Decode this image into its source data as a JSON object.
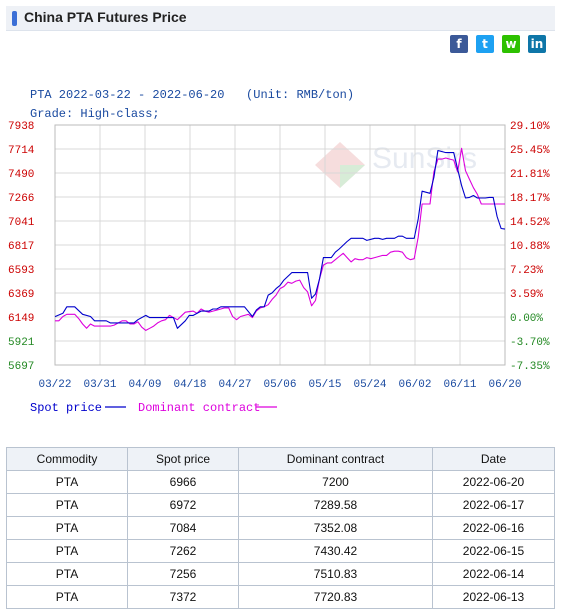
{
  "page": {
    "title": "China PTA Futures Price"
  },
  "share": {
    "icons": [
      "facebook-icon",
      "twitter-icon",
      "wechat-icon",
      "linkedin-icon"
    ]
  },
  "chart_data": {
    "type": "line",
    "title": "PTA 2022-03-22 - 2022-06-20   (Unit: RMB/ton)",
    "subtitle": "Grade: High-class;",
    "watermark": "SunSirs",
    "x_tick_labels": [
      "03/22",
      "03/31",
      "04/09",
      "04/18",
      "04/27",
      "05/06",
      "05/15",
      "05/24",
      "06/02",
      "06/11",
      "06/20"
    ],
    "y_left_ticks": [
      "7938",
      "7714",
      "7490",
      "7266",
      "7041",
      "6817",
      "6593",
      "6369",
      "6149",
      "5921",
      "5697"
    ],
    "y_right_ticks": [
      "29.10%",
      "25.45%",
      "21.81%",
      "18.17%",
      "14.52%",
      "10.88%",
      "7.23%",
      "3.59%",
      "0.00%",
      "-3.70%",
      "-7.35%"
    ],
    "ylim": [
      5697,
      7938
    ],
    "x_count": 91,
    "grid": true,
    "legend_position": "bottom-left",
    "colors": {
      "spot": "#0000cc",
      "dominant": "#dd00dd",
      "left_axis": "#cc0000",
      "right_axis": "#cc0000",
      "left_axis_low": "#228822",
      "right_axis_low": "#228822"
    },
    "series": [
      {
        "name": "Spot price",
        "key": "spot",
        "values": [
          [
            0,
            6149
          ],
          [
            2,
            6180
          ],
          [
            3,
            6240
          ],
          [
            5,
            6240
          ],
          [
            7,
            6170
          ],
          [
            9,
            6150
          ],
          [
            10,
            6110
          ],
          [
            12,
            6110
          ],
          [
            13,
            6110
          ],
          [
            14,
            6090
          ],
          [
            16,
            6090
          ],
          [
            17,
            6090
          ],
          [
            18,
            6090
          ],
          [
            19,
            6090
          ],
          [
            20,
            6090
          ],
          [
            21,
            6120
          ],
          [
            23,
            6160
          ],
          [
            24,
            6140
          ],
          [
            25,
            6140
          ],
          [
            26,
            6140
          ],
          [
            27,
            6140
          ],
          [
            28,
            6140
          ],
          [
            30,
            6140
          ],
          [
            31,
            6040
          ],
          [
            33,
            6110
          ],
          [
            34,
            6160
          ],
          [
            35,
            6160
          ],
          [
            37,
            6200
          ],
          [
            38,
            6200
          ],
          [
            39,
            6200
          ],
          [
            40,
            6220
          ],
          [
            41,
            6220
          ],
          [
            42,
            6240
          ],
          [
            43,
            6240
          ],
          [
            44,
            6240
          ],
          [
            46,
            6240
          ],
          [
            47,
            6240
          ],
          [
            48,
            6240
          ],
          [
            50,
            6150
          ],
          [
            51,
            6210
          ],
          [
            52,
            6240
          ],
          [
            53,
            6240
          ],
          [
            54,
            6350
          ],
          [
            55,
            6370
          ],
          [
            56,
            6410
          ],
          [
            57,
            6440
          ],
          [
            58,
            6490
          ],
          [
            60,
            6560
          ],
          [
            61,
            6560
          ],
          [
            62,
            6560
          ],
          [
            63,
            6560
          ],
          [
            64,
            6560
          ],
          [
            65,
            6320
          ],
          [
            66,
            6360
          ],
          [
            67,
            6500
          ],
          [
            68,
            6700
          ],
          [
            70,
            6700
          ],
          [
            71,
            6750
          ],
          [
            72,
            6780
          ],
          [
            74,
            6850
          ],
          [
            75,
            6880
          ],
          [
            76,
            6880
          ],
          [
            77,
            6880
          ],
          [
            78,
            6880
          ],
          [
            79,
            6860
          ],
          [
            81,
            6880
          ],
          [
            82,
            6880
          ],
          [
            83,
            6870
          ],
          [
            84,
            6880
          ],
          [
            85,
            6880
          ],
          [
            86,
            6880
          ],
          [
            87,
            6900
          ],
          [
            88,
            6900
          ],
          [
            89,
            6880
          ],
          [
            90,
            6880
          ],
          [
            91,
            6880
          ],
          [
            92,
            7060
          ],
          [
            93,
            7320
          ],
          [
            95,
            7300
          ],
          [
            96,
            7450
          ],
          [
            97,
            7700
          ],
          [
            99,
            7680
          ],
          [
            100,
            7680
          ],
          [
            101,
            7680
          ],
          [
            103,
            7372
          ],
          [
            104,
            7256
          ],
          [
            105,
            7262
          ],
          [
            106,
            7280
          ],
          [
            107,
            7256
          ],
          [
            108,
            7256
          ],
          [
            109,
            7256
          ],
          [
            110,
            7262
          ],
          [
            111,
            7262
          ],
          [
            112,
            7084
          ],
          [
            113,
            6972
          ],
          [
            114,
            6966
          ]
        ]
      },
      {
        "name": "Dominant contract",
        "key": "dominant",
        "values": [
          [
            0,
            6110
          ],
          [
            1,
            6110
          ],
          [
            2,
            6150
          ],
          [
            3,
            6170
          ],
          [
            4,
            6170
          ],
          [
            5,
            6170
          ],
          [
            6,
            6130
          ],
          [
            7,
            6080
          ],
          [
            8,
            6040
          ],
          [
            9,
            6080
          ],
          [
            10,
            6060
          ],
          [
            11,
            6060
          ],
          [
            12,
            6060
          ],
          [
            13,
            6060
          ],
          [
            14,
            6060
          ],
          [
            15,
            6070
          ],
          [
            17,
            6110
          ],
          [
            18,
            6110
          ],
          [
            19,
            6080
          ],
          [
            20,
            6080
          ],
          [
            21,
            6100
          ],
          [
            22,
            6050
          ],
          [
            23,
            6020
          ],
          [
            24,
            6040
          ],
          [
            25,
            6060
          ],
          [
            26,
            6090
          ],
          [
            27,
            6110
          ],
          [
            28,
            6120
          ],
          [
            29,
            6160
          ],
          [
            31,
            6120
          ],
          [
            33,
            6190
          ],
          [
            35,
            6200
          ],
          [
            36,
            6180
          ],
          [
            37,
            6220
          ],
          [
            38,
            6200
          ],
          [
            39,
            6190
          ],
          [
            40,
            6200
          ],
          [
            41,
            6210
          ],
          [
            42,
            6220
          ],
          [
            43,
            6230
          ],
          [
            44,
            6230
          ],
          [
            45,
            6150
          ],
          [
            46,
            6120
          ],
          [
            47,
            6150
          ],
          [
            48,
            6160
          ],
          [
            49,
            6170
          ],
          [
            50,
            6140
          ],
          [
            51,
            6200
          ],
          [
            52,
            6230
          ],
          [
            53,
            6240
          ],
          [
            54,
            6260
          ],
          [
            55,
            6310
          ],
          [
            56,
            6350
          ],
          [
            57,
            6410
          ],
          [
            58,
            6430
          ],
          [
            59,
            6470
          ],
          [
            60,
            6460
          ],
          [
            61,
            6480
          ],
          [
            62,
            6490
          ],
          [
            63,
            6420
          ],
          [
            64,
            6380
          ],
          [
            65,
            6250
          ],
          [
            66,
            6300
          ],
          [
            67,
            6500
          ],
          [
            68,
            6630
          ],
          [
            69,
            6650
          ],
          [
            70,
            6650
          ],
          [
            71,
            6680
          ],
          [
            72,
            6710
          ],
          [
            73,
            6740
          ],
          [
            74,
            6700
          ],
          [
            75,
            6660
          ],
          [
            76,
            6690
          ],
          [
            77,
            6680
          ],
          [
            78,
            6680
          ],
          [
            79,
            6700
          ],
          [
            80,
            6690
          ],
          [
            81,
            6700
          ],
          [
            82,
            6710
          ],
          [
            83,
            6720
          ],
          [
            84,
            6720
          ],
          [
            85,
            6750
          ],
          [
            86,
            6760
          ],
          [
            87,
            6760
          ],
          [
            88,
            6750
          ],
          [
            89,
            6700
          ],
          [
            90,
            6680
          ],
          [
            91,
            6690
          ],
          [
            92,
            6890
          ],
          [
            93,
            7200
          ],
          [
            94,
            7200
          ],
          [
            95,
            7200
          ],
          [
            96,
            7500
          ],
          [
            97,
            7620
          ],
          [
            98,
            7620
          ],
          [
            99,
            7630
          ],
          [
            100,
            7620
          ],
          [
            101,
            7610
          ],
          [
            102,
            7500
          ],
          [
            103,
            7720.83
          ],
          [
            104,
            7510.83
          ],
          [
            105,
            7430.42
          ],
          [
            106,
            7352.08
          ],
          [
            107,
            7289.58
          ],
          [
            108,
            7200
          ],
          [
            109,
            7200
          ],
          [
            110,
            7200
          ],
          [
            111,
            7200
          ],
          [
            112,
            7200
          ],
          [
            113,
            7200
          ],
          [
            114,
            7200
          ]
        ]
      }
    ]
  },
  "table": {
    "headers": [
      "Commodity",
      "Spot price",
      "Dominant contract",
      "Date"
    ],
    "rows": [
      [
        "PTA",
        "6966",
        "7200",
        "2022-06-20"
      ],
      [
        "PTA",
        "6972",
        "7289.58",
        "2022-06-17"
      ],
      [
        "PTA",
        "7084",
        "7352.08",
        "2022-06-16"
      ],
      [
        "PTA",
        "7262",
        "7430.42",
        "2022-06-15"
      ],
      [
        "PTA",
        "7256",
        "7510.83",
        "2022-06-14"
      ],
      [
        "PTA",
        "7372",
        "7720.83",
        "2022-06-13"
      ]
    ]
  }
}
